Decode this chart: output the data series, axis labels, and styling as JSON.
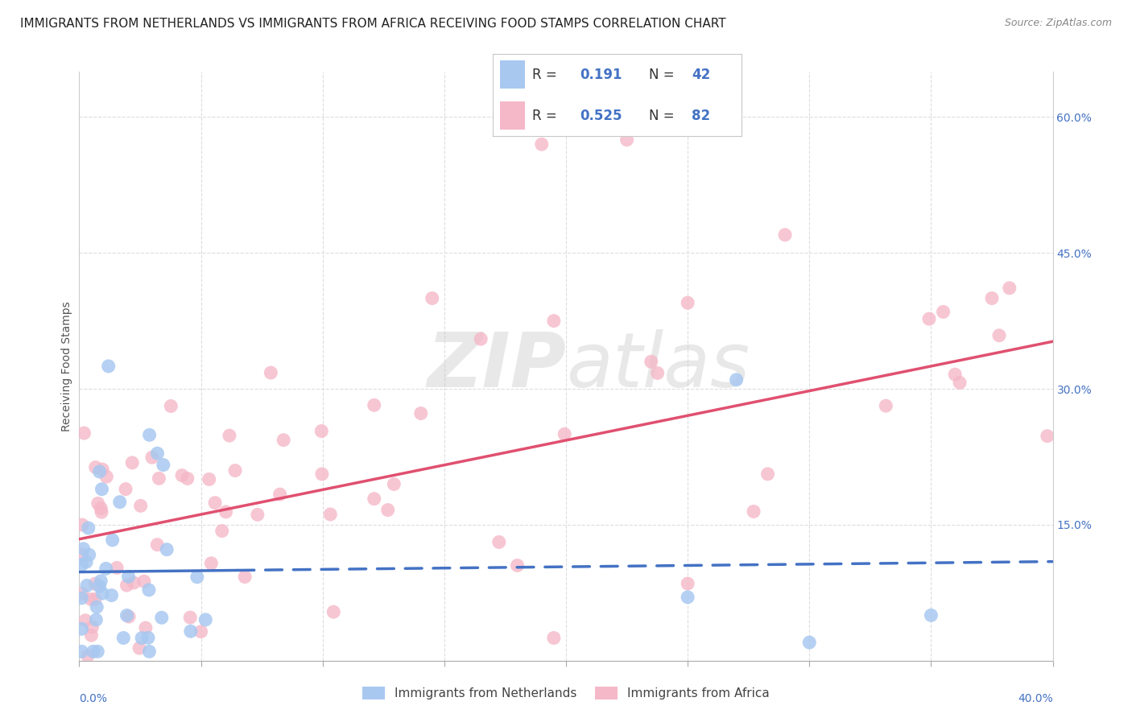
{
  "title": "IMMIGRANTS FROM NETHERLANDS VS IMMIGRANTS FROM AFRICA RECEIVING FOOD STAMPS CORRELATION CHART",
  "source": "Source: ZipAtlas.com",
  "ylabel": "Receiving Food Stamps",
  "yticks_right": [
    0.0,
    0.15,
    0.3,
    0.45,
    0.6
  ],
  "ytick_labels_right": [
    "",
    "15.0%",
    "30.0%",
    "45.0%",
    "60.0%"
  ],
  "xmin": 0.0,
  "xmax": 0.4,
  "ymin": 0.0,
  "ymax": 0.65,
  "watermark": "ZIPatlas",
  "legend_r1": "R = ",
  "legend_v1": "0.191",
  "legend_n1": "N = ",
  "legend_nv1": "42",
  "legend_r2": "R = ",
  "legend_v2": "0.525",
  "legend_n2": "N = ",
  "legend_nv2": "82",
  "series1_label": "Immigrants from Netherlands",
  "series2_label": "Immigrants from Africa",
  "color1": "#A8C8F0",
  "color2": "#F5B8C8",
  "trendline1_color": "#4472C4",
  "trendline2_color": "#E05070",
  "background_color": "#FFFFFF",
  "grid_color": "#DDDDDD",
  "title_fontsize": 11,
  "axis_label_fontsize": 10,
  "tick_fontsize": 10,
  "legend_text_color": "#333333",
  "legend_value_color": "#4472C4"
}
